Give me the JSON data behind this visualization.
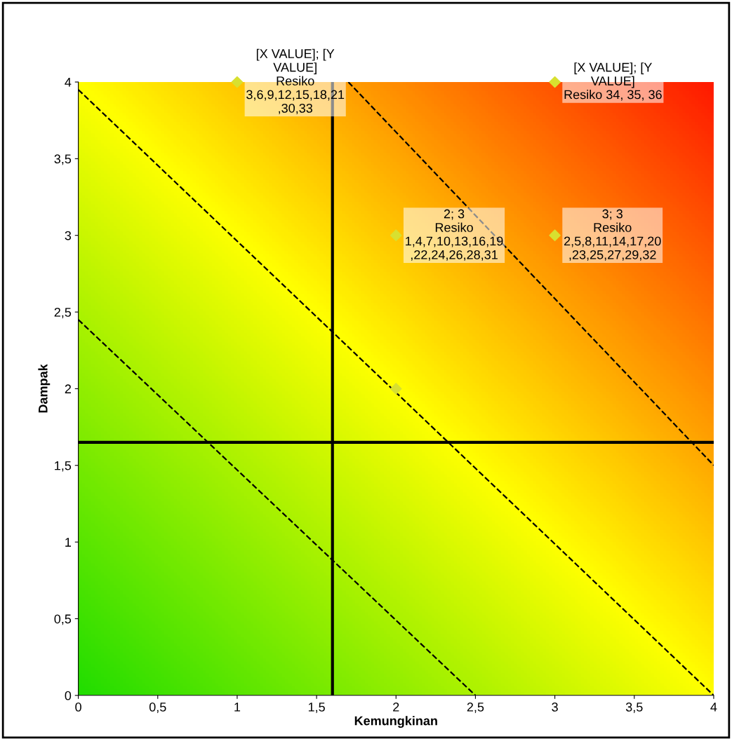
{
  "chart_data": {
    "type": "scatter",
    "xlabel": "Kemungkinan",
    "ylabel": "Dampak",
    "xlim": [
      0,
      4
    ],
    "ylim": [
      0,
      4
    ],
    "xticks": [
      0,
      {
        "value": 0.5,
        "label": "0,5"
      },
      1,
      {
        "value": 1.5,
        "label": "1,5"
      },
      2,
      {
        "value": 2.5,
        "label": "2,5"
      },
      3,
      {
        "value": 3.5,
        "label": "3,5"
      },
      4
    ],
    "yticks": [
      0,
      {
        "value": 0.5,
        "label": "0,5"
      },
      1,
      {
        "value": 1.5,
        "label": "1,5"
      },
      2,
      {
        "value": 2.5,
        "label": "2,5"
      },
      3,
      {
        "value": 3.5,
        "label": "3,5"
      },
      4
    ],
    "grid": false,
    "legend": false,
    "series": [
      {
        "color": "#d8e030",
        "marker": "diamond",
        "x": [
          1,
          3,
          2,
          3,
          2
        ],
        "values": [
          4,
          4,
          3,
          3,
          2
        ],
        "value_labels": [
          "[X VALUE]; [Y\nVALUE]\nResiko\n3,6,9,12,15,18,21\n,30,33",
          "[X VALUE]; [Y\nVALUE]\nResiko 34, 35, 36",
          "2; 3\nResiko\n1,4,7,10,13,16,19\n,22,24,26,28,31",
          "3; 3\nResiko\n2,5,8,11,14,17,20\n,23,25,27,29,32",
          null
        ]
      },
      {
        "type": "line",
        "color": "#000000",
        "line_style": "dashed",
        "marker": "none",
        "x": [
          0,
          2.5
        ],
        "values": [
          2.45,
          0
        ]
      },
      {
        "type": "line",
        "color": "#000000",
        "line_style": "dashed",
        "marker": "none",
        "x": [
          0,
          4
        ],
        "values": [
          3.95,
          0
        ]
      },
      {
        "type": "line",
        "color": "#000000",
        "line_style": "dashed",
        "marker": "none",
        "x": [
          1.7,
          4
        ],
        "values": [
          4,
          1.5
        ]
      }
    ],
    "ref_lines": [
      {
        "axis": "x",
        "value": 1.6,
        "color": "#000000"
      },
      {
        "axis": "y",
        "value": 1.65,
        "color": "#000000"
      }
    ]
  }
}
